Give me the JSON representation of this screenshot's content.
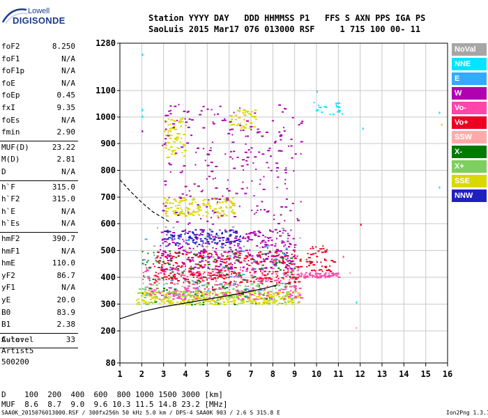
{
  "logo": {
    "top": "Lowell",
    "bottom": "DIGISONDE"
  },
  "header": {
    "row1": "Station YYYY DAY   DDD HHMMSS P1   FFS S AXN PPS IGA PS",
    "row2": "SaoLuis 2015 Mar17 076 013000 RSF     1 715 100 00- 11"
  },
  "scaled": [
    {
      "label": "foF2",
      "value": "8.250"
    },
    {
      "label": "foF1",
      "value": "N/A"
    },
    {
      "label": "foF1p",
      "value": "N/A"
    },
    {
      "label": "foE",
      "value": "N/A"
    },
    {
      "label": "foEp",
      "value": "0.45"
    },
    {
      "label": "fxI",
      "value": "9.35"
    },
    {
      "label": "foEs",
      "value": "N/A"
    },
    {
      "label": "fmin",
      "value": "2.90"
    },
    {
      "label": "MUF(D)",
      "value": "23.22"
    },
    {
      "label": "M(D)",
      "value": "2.81"
    },
    {
      "label": "D",
      "value": "N/A"
    },
    {
      "label": "h`F",
      "value": "315.0"
    },
    {
      "label": "h`F2",
      "value": "315.0"
    },
    {
      "label": "h`E",
      "value": "N/A"
    },
    {
      "label": "h`Es",
      "value": "N/A"
    },
    {
      "label": "hmF2",
      "value": "390.7"
    },
    {
      "label": "hmF1",
      "value": "N/A"
    },
    {
      "label": "hmE",
      "value": "110.0"
    },
    {
      "label": "yF2",
      "value": "86.7"
    },
    {
      "label": "yF1",
      "value": "N/A"
    },
    {
      "label": "yE",
      "value": "20.0"
    },
    {
      "label": "B0",
      "value": "83.9"
    },
    {
      "label": "B1",
      "value": "2.38"
    },
    {
      "label": "C-level",
      "value": "33"
    }
  ],
  "auto": {
    "line1": "Auto:",
    "line2": "Artist5",
    "line3": "500200"
  },
  "legend": [
    {
      "label": "NoVal",
      "color": "#a6a6a6",
      "text_color": "#ffffff"
    },
    {
      "label": "NNE",
      "color": "#00e5ff",
      "text_color": "#ffffff"
    },
    {
      "label": "E",
      "color": "#33aaff",
      "text_color": "#ffffff"
    },
    {
      "label": "W",
      "color": "#b000b0",
      "text_color": "#ffffff"
    },
    {
      "label": "Vo-",
      "color": "#ff44aa",
      "text_color": "#ffffff"
    },
    {
      "label": "Vo+",
      "color": "#ee0022",
      "text_color": "#ffffff"
    },
    {
      "label": "SSW",
      "color": "#ffaaaa",
      "text_color": "#ffffff"
    },
    {
      "label": "X-",
      "color": "#007a00",
      "text_color": "#ffffff"
    },
    {
      "label": "X+",
      "color": "#7fcf5f",
      "text_color": "#ffffff"
    },
    {
      "label": "SSE",
      "color": "#d8d800",
      "text_color": "#ffffff"
    },
    {
      "label": "NNW",
      "color": "#2020c0",
      "text_color": "#ffffff"
    }
  ],
  "bottom": {
    "d_row": "D    100  200  400  600  800 1000 1500 3000 [km]",
    "muf_row": "MUF  8.6  8.7  9.0  9.6 10.3 11.5 14.8 23.2 [MHz]"
  },
  "footer": "SAA0K_2015076013000.RSF / 300fx256h 50 kHz 5.0 km / DPS-4 SAA0K 903 / 2.6 S 315.8 E",
  "version": "Ion2Png 1.3.17",
  "chart_data": {
    "type": "scatter",
    "x_ticks": [
      1,
      2,
      3,
      4,
      5,
      6,
      7,
      8,
      9,
      10,
      11,
      12,
      13,
      14,
      15,
      16
    ],
    "y_ticks": [
      80,
      200,
      300,
      400,
      500,
      600,
      700,
      800,
      900,
      1000,
      1100,
      1280
    ],
    "xlim": [
      1,
      16
    ],
    "ylim": [
      80,
      1280
    ],
    "grid": true,
    "legend_placement": "right",
    "curves": {
      "solid": [
        [
          1.0,
          245
        ],
        [
          2.0,
          272
        ],
        [
          3.0,
          290
        ],
        [
          4.0,
          304
        ],
        [
          5.0,
          318
        ],
        [
          6.0,
          332
        ],
        [
          7.0,
          348
        ],
        [
          7.8,
          362
        ],
        [
          8.2,
          372
        ]
      ],
      "dashed": [
        [
          1.0,
          765
        ],
        [
          1.5,
          720
        ],
        [
          2.0,
          680
        ],
        [
          2.5,
          645
        ],
        [
          3.0,
          620
        ],
        [
          3.3,
          605
        ]
      ]
    },
    "echo_clusters": [
      {
        "color": "SSE",
        "x": [
          1.7,
          9.2
        ],
        "y": [
          300,
          350
        ],
        "n": 340
      },
      {
        "color": "X+",
        "x": [
          1.8,
          8.8
        ],
        "y": [
          300,
          380
        ],
        "n": 160
      },
      {
        "color": "Vo-",
        "x": [
          2.0,
          9.3
        ],
        "y": [
          320,
          440
        ],
        "n": 320
      },
      {
        "color": "Vo+",
        "x": [
          2.5,
          9.3
        ],
        "y": [
          380,
          500
        ],
        "n": 320
      },
      {
        "color": "W",
        "x": [
          2.8,
          9.0
        ],
        "y": [
          430,
          580
        ],
        "n": 320
      },
      {
        "color": "NNW",
        "x": [
          3.0,
          6.5
        ],
        "y": [
          520,
          580
        ],
        "n": 100
      },
      {
        "color": "SSE",
        "x": [
          3.0,
          6.2
        ],
        "y": [
          630,
          700
        ],
        "n": 160
      },
      {
        "color": "SSE",
        "x": [
          3.0,
          4.0
        ],
        "y": [
          850,
          1000
        ],
        "n": 70
      },
      {
        "color": "SSE",
        "x": [
          6.0,
          7.2
        ],
        "y": [
          960,
          1030
        ],
        "n": 50
      },
      {
        "color": "W",
        "x": [
          2.9,
          9.4
        ],
        "y": [
          600,
          1050
        ],
        "n": 240
      },
      {
        "color": "Vo-",
        "x": [
          9.0,
          11.0
        ],
        "y": [
          400,
          420
        ],
        "n": 70
      },
      {
        "color": "Vo+",
        "x": [
          9.5,
          10.8
        ],
        "y": [
          420,
          520
        ],
        "n": 50
      },
      {
        "color": "X-",
        "x": [
          2.0,
          9.0
        ],
        "y": [
          300,
          500
        ],
        "n": 120
      },
      {
        "color": "NNE",
        "x": [
          9.8,
          11.2
        ],
        "y": [
          1010,
          1060
        ],
        "n": 22
      },
      {
        "color": "E",
        "x": [
          2.0,
          9.0
        ],
        "y": [
          320,
          560
        ],
        "n": 60
      },
      {
        "color": "NoVal",
        "x": [
          2.0,
          9.3
        ],
        "y": [
          300,
          600
        ],
        "n": 50
      }
    ],
    "sparse_points": [
      {
        "color": "NNE",
        "x": 2.0,
        "y": 1240
      },
      {
        "color": "NNE",
        "x": 2.0,
        "y": 1030
      },
      {
        "color": "NNE",
        "x": 2.0,
        "y": 1005
      },
      {
        "color": "W",
        "x": 2.0,
        "y": 950
      },
      {
        "color": "NNE",
        "x": 10.0,
        "y": 1100
      },
      {
        "color": "NNE",
        "x": 11.8,
        "y": 310
      },
      {
        "color": "SSW",
        "x": 11.8,
        "y": 215
      },
      {
        "color": "NNE",
        "x": 12.1,
        "y": 960
      },
      {
        "color": "NNE",
        "x": 15.6,
        "y": 1020
      },
      {
        "color": "NNE",
        "x": 15.6,
        "y": 740
      },
      {
        "color": "SSE",
        "x": 15.7,
        "y": 975
      },
      {
        "color": "Vo+",
        "x": 12.0,
        "y": 600
      },
      {
        "color": "Vo-",
        "x": 11.2,
        "y": 480
      },
      {
        "color": "SSW",
        "x": 11.5,
        "y": 420
      }
    ]
  }
}
